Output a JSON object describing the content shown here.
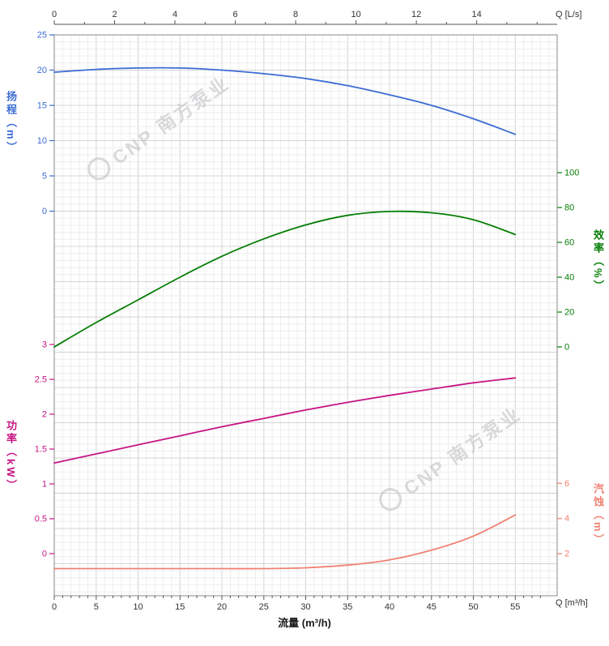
{
  "watermark": {
    "text": "CNP 南方泵业"
  },
  "chart_data": {
    "type": "line",
    "x_bottom": {
      "axis_label": "流量 (m³/h)",
      "unit_label": "Q [m³/h]",
      "ticks": [
        0,
        5,
        10,
        15,
        20,
        25,
        30,
        35,
        40,
        45,
        50,
        55
      ],
      "max": 60
    },
    "x_top": {
      "unit_label": "Q [L/s]",
      "ticks": [
        0,
        2,
        4,
        6,
        8,
        10,
        12,
        14
      ],
      "m3h_per_Ls": 3.6
    },
    "y_axes": [
      {
        "id": "head",
        "label": "扬程（m）",
        "side": "left",
        "color": "#3b6cd4",
        "ticks": [
          0,
          5,
          10,
          15,
          20,
          25
        ]
      },
      {
        "id": "eff",
        "label": "效率（%）",
        "side": "right",
        "color": "#067d06",
        "ticks": [
          0,
          20,
          40,
          60,
          80,
          100
        ]
      },
      {
        "id": "power",
        "label": "功率（kW）",
        "side": "left",
        "color": "#c71585",
        "ticks": [
          0,
          0.5,
          1,
          1.5,
          2,
          2.5,
          3
        ]
      },
      {
        "id": "npsh",
        "label": "汽蚀（m）",
        "side": "right",
        "color": "#f08273",
        "ticks": [
          2,
          4,
          6
        ]
      }
    ],
    "series": [
      {
        "id": "head",
        "name": "扬程",
        "axis": "head",
        "color": "#3b6cd4",
        "q": [
          0,
          5,
          10,
          15,
          20,
          25,
          30,
          35,
          40,
          45,
          50,
          55
        ],
        "v": [
          19.7,
          20.1,
          20.3,
          20.3,
          20.0,
          19.5,
          18.8,
          17.8,
          16.5,
          15.0,
          13.1,
          10.9
        ]
      },
      {
        "id": "eff",
        "name": "效率",
        "axis": "eff",
        "color": "#067d06",
        "q": [
          0,
          5,
          10,
          15,
          20,
          25,
          30,
          35,
          40,
          45,
          50,
          55
        ],
        "v": [
          0,
          14,
          27,
          40,
          52,
          62,
          70,
          75.5,
          77.7,
          77,
          73,
          64.5
        ]
      },
      {
        "id": "power",
        "name": "功率",
        "axis": "power",
        "color": "#c71585",
        "q": [
          0,
          5,
          10,
          15,
          20,
          25,
          30,
          35,
          40,
          45,
          50,
          55
        ],
        "v": [
          1.3,
          1.43,
          1.56,
          1.69,
          1.82,
          1.94,
          2.06,
          2.17,
          2.27,
          2.36,
          2.45,
          2.52
        ]
      },
      {
        "id": "npsh",
        "name": "汽蚀",
        "axis": "npsh",
        "color": "#f08273",
        "q": [
          0,
          5,
          10,
          15,
          20,
          25,
          30,
          35,
          40,
          45,
          50,
          55
        ],
        "v": [
          1.15,
          1.15,
          1.15,
          1.15,
          1.15,
          1.15,
          1.2,
          1.35,
          1.65,
          2.2,
          3.0,
          4.2
        ]
      }
    ]
  }
}
